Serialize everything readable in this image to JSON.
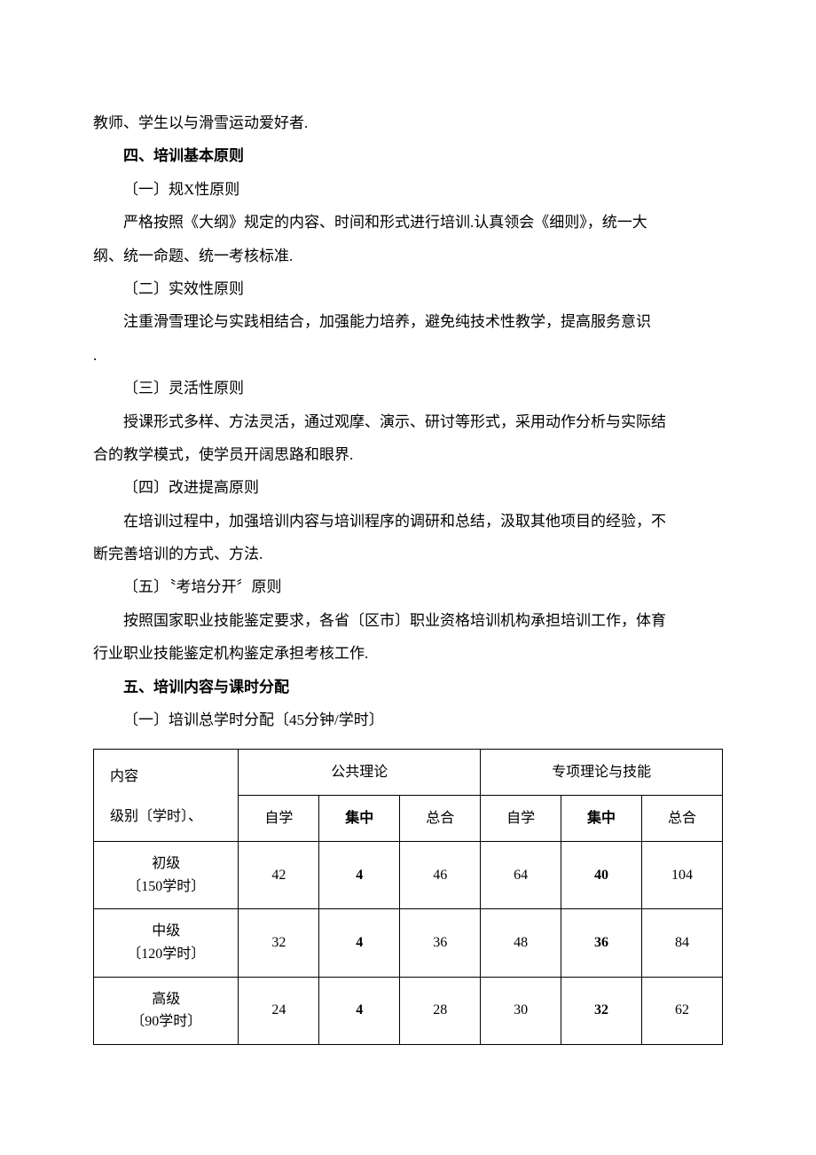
{
  "paragraphs": {
    "p1": "教师、学生以与滑雪运动爱好者.",
    "h4": "四、培训基本原则",
    "p2": "〔一〕规X性原则",
    "p3": "严格按照《大纲》规定的内容、时间和形式进行培训.认真领会《细则》，统一大",
    "p4": "纲、统一命题、统一考核标准.",
    "p5": "〔二〕实效性原则",
    "p6": "注重滑雪理论与实践相结合，加强能力培养，避免纯技术性教学，提高服务意识",
    "p7": ".",
    "p8": "〔三〕灵活性原则",
    "p9": "授课形式多样、方法灵活，通过观摩、演示、研讨等形式，采用动作分析与实际结",
    "p10": "合的教学模式，使学员开阔思路和眼界.",
    "p11": "〔四〕改进提高原则",
    "p12": "在培训过程中，加强培训内容与培训程序的调研和总结，汲取其他项目的经验，不",
    "p13": "断完善培训的方式、方法.",
    "p14": "〔五〕〝考培分开〞原则",
    "p15": "按照国家职业技能鉴定要求，各省〔区市〕职业资格培训机构承担培训工作，体育",
    "p16": "行业职业技能鉴定机构鉴定承担考核工作.",
    "h5": "五、培训内容与课时分配",
    "p17": "〔一〕培训总学时分配〔45分钟/学时〕"
  },
  "table": {
    "type": "table",
    "columns": {
      "content": {
        "line1": "内容",
        "line2": "级别〔学时〕、"
      },
      "public_theory": "公共理论",
      "special_theory": "专项理论与技能",
      "self_study": "自学",
      "concentrated": "集中",
      "total": "总合"
    },
    "rows": [
      {
        "level_line1": "初级",
        "level_line2": "〔150学时〕",
        "pt_self": "42",
        "pt_conc": "4",
        "pt_total": "46",
        "st_self": "64",
        "st_conc": "40",
        "st_total": "104"
      },
      {
        "level_line1": "中级",
        "level_line2": "〔120学时〕",
        "pt_self": "32",
        "pt_conc": "4",
        "pt_total": "36",
        "st_self": "48",
        "st_conc": "36",
        "st_total": "84"
      },
      {
        "level_line1": "高级",
        "level_line2": "〔90学时〕",
        "pt_self": "24",
        "pt_conc": "4",
        "pt_total": "28",
        "st_self": "30",
        "st_conc": "32",
        "st_total": "62"
      }
    ],
    "border_color": "#000000",
    "background_color": "#ffffff",
    "font_size": 16
  }
}
